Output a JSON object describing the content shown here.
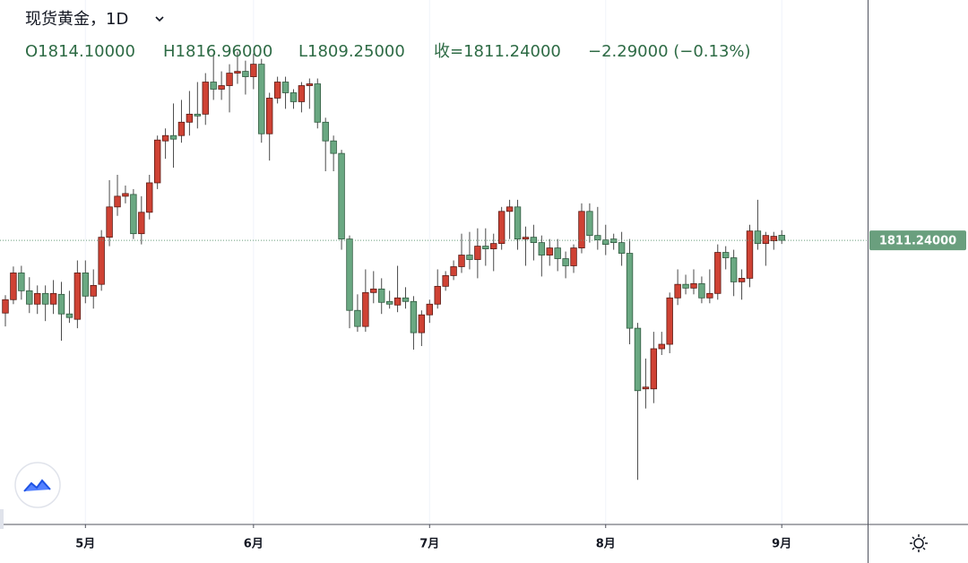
{
  "chart_data": {
    "type": "candlestick",
    "header": {
      "title": "现货黄金，1D",
      "open": "O1814.10000",
      "high": "H1816.96000",
      "low": "L1809.25000",
      "close": "收=1811.24000",
      "change": "−2.29000 (−0.13%)"
    },
    "categories": [
      null,
      null,
      null,
      null,
      null,
      null,
      null,
      null,
      null,
      null,
      "5月",
      null,
      null,
      null,
      null,
      null,
      null,
      null,
      null,
      null,
      null,
      null,
      null,
      null,
      null,
      null,
      null,
      null,
      null,
      null,
      null,
      "6月",
      null,
      null,
      null,
      null,
      null,
      null,
      null,
      null,
      null,
      null,
      null,
      null,
      null,
      null,
      null,
      null,
      null,
      null,
      null,
      null,
      null,
      "7月",
      null,
      null,
      null,
      null,
      null,
      null,
      null,
      null,
      null,
      null,
      null,
      null,
      null,
      null,
      null,
      null,
      null,
      null,
      null,
      null,
      null,
      "8月",
      null,
      null,
      null,
      null,
      null,
      null,
      null,
      null,
      null,
      null,
      null,
      null,
      null,
      null,
      null,
      null,
      null,
      null,
      null,
      null,
      null,
      "9月"
    ],
    "open": [
      1770.5,
      1778,
      1793,
      1783,
      1775.5,
      1781.5,
      1775.5,
      1781,
      1770,
      1767,
      1793,
      1780,
      1786.6,
      1813,
      1830,
      1836,
      1837,
      1815,
      1827,
      1843.5,
      1867,
      1870,
      1870,
      1877.5,
      1882,
      1882,
      1900,
      1896,
      1898,
      1905,
      1906,
      1903,
      1910,
      1871,
      1891,
      1900,
      1894,
      1889,
      1898,
      1899,
      1877.5,
      1867,
      1860,
      1812,
      1772,
      1763,
      1782,
      1784,
      1777,
      1775,
      1779,
      1777,
      1759.5,
      1769.5,
      1775.5,
      1785.5,
      1791.5,
      1796.5,
      1803,
      1800.5,
      1808,
      1806.5,
      1809.5,
      1827.5,
      1830,
      1812,
      1813,
      1810,
      1803,
      1807,
      1801,
      1797,
      1807,
      1827.5,
      1814,
      1811.5,
      1812,
      1810,
      1804,
      1762,
      1728,
      1728,
      1750.5,
      1753,
      1779,
      1786.6,
      1784.5,
      1787,
      1779,
      1781.5,
      1804.5,
      1801.5,
      1788,
      1790,
      1816.5,
      1809.5,
      1811,
      1814.1
    ],
    "high": [
      1780.5,
      1796.6,
      1797,
      1790.6,
      1786,
      1786,
      1789,
      1788,
      1783,
      1800,
      1800,
      1795,
      1817,
      1845,
      1848,
      1842,
      1840,
      1836,
      1848,
      1870,
      1874,
      1888,
      1890,
      1895,
      1900,
      1905,
      1916,
      1906,
      1910,
      1917,
      1912,
      1916,
      1913,
      1894,
      1903,
      1903,
      1896,
      1900,
      1902,
      1902,
      1880,
      1870,
      1862,
      1814,
      1781,
      1795,
      1794,
      1790,
      1783,
      1797,
      1785,
      1780,
      1772,
      1778,
      1795,
      1794,
      1800,
      1815,
      1816,
      1818,
      1818,
      1815,
      1830,
      1834,
      1834,
      1819,
      1820,
      1814,
      1812,
      1812,
      1805,
      1809,
      1832,
      1832,
      1830,
      1820,
      1815,
      1816,
      1812,
      1765,
      1745,
      1760,
      1760,
      1782,
      1795,
      1792,
      1795,
      1791,
      1795,
      1809,
      1808,
      1806,
      1795,
      1820,
      1834,
      1816,
      1816,
      1816.96
    ],
    "low": [
      1763,
      1775.5,
      1778,
      1770.5,
      1770,
      1766,
      1770,
      1755,
      1765,
      1762,
      1776,
      1773,
      1783,
      1808,
      1825,
      1832,
      1812,
      1809,
      1823,
      1840,
      1857,
      1852,
      1866,
      1870,
      1874,
      1876,
      1890,
      1890,
      1883,
      1899,
      1893,
      1896,
      1866,
      1856,
      1888,
      1885,
      1885,
      1883,
      1885,
      1874,
      1850,
      1850,
      1806,
      1762,
      1760,
      1760,
      1776,
      1770,
      1773,
      1771,
      1773,
      1750,
      1752,
      1765,
      1773,
      1783,
      1789,
      1793,
      1795,
      1790,
      1797,
      1794,
      1806,
      1812,
      1806,
      1797,
      1800,
      1791,
      1797,
      1794,
      1790,
      1793,
      1804,
      1810,
      1806,
      1803,
      1806,
      1797,
      1753,
      1677,
      1717,
      1720,
      1747,
      1748,
      1775,
      1781,
      1781,
      1776,
      1776,
      1778,
      1795,
      1780,
      1778,
      1785,
      1806,
      1797,
      1806,
      1809.25
    ],
    "close": [
      1778,
      1793,
      1783,
      1775.5,
      1781.5,
      1775.5,
      1781.5,
      1770,
      1768,
      1793,
      1780,
      1786,
      1813,
      1830,
      1836,
      1837.5,
      1815,
      1827,
      1843.5,
      1867.5,
      1870,
      1868,
      1877.5,
      1882,
      1881,
      1900,
      1896,
      1898,
      1905,
      1906,
      1903,
      1910,
      1871,
      1891,
      1900,
      1894,
      1889,
      1898,
      1899,
      1877.5,
      1867,
      1860,
      1812,
      1772,
      1763,
      1782,
      1784,
      1776.5,
      1775.5,
      1779,
      1777,
      1759.5,
      1769.5,
      1775.5,
      1785.5,
      1791.5,
      1796.5,
      1803,
      1800.5,
      1808,
      1806.5,
      1809.5,
      1827.5,
      1830,
      1812,
      1813,
      1810,
      1803,
      1807,
      1801,
      1797,
      1807,
      1827.5,
      1814,
      1811.5,
      1809,
      1810,
      1804,
      1762,
      1727,
      1729,
      1750.5,
      1753,
      1779,
      1786.6,
      1784.5,
      1787,
      1779,
      1781.5,
      1804.5,
      1801.5,
      1788,
      1790,
      1816.5,
      1809.5,
      1814,
      1813.53,
      1811.24
    ],
    "ylim": [
      1652,
      1946
    ],
    "last_price": {
      "value": 1811.24,
      "label": "1811.24000"
    },
    "up_color": "#cf4234",
    "up_border": "#5a1a14",
    "down_color": "#6aa882",
    "down_border": "#2f5a3f",
    "wick_color": "#4a4a4a",
    "label_color": "#6a9f7e",
    "grid": true
  }
}
